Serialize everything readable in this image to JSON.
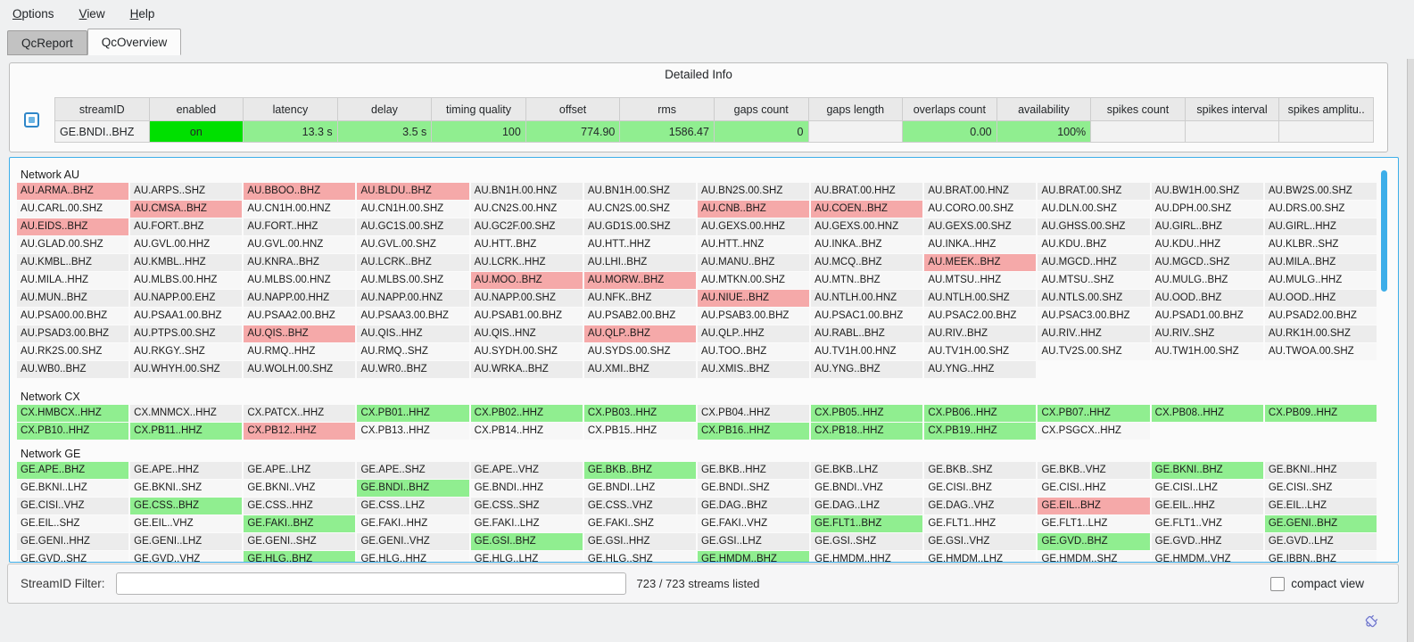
{
  "menu": {
    "items": [
      "Options",
      "View",
      "Help"
    ]
  },
  "tabs": [
    {
      "label": "QcReport",
      "active": false
    },
    {
      "label": "QcOverview",
      "active": true
    }
  ],
  "detailed_info": {
    "title": "Detailed Info",
    "columns": [
      "streamID",
      "enabled",
      "latency",
      "delay",
      "timing quality",
      "offset",
      "rms",
      "gaps count",
      "gaps length",
      "overlaps count",
      "availability",
      "spikes count",
      "spikes interval",
      "spikes amplitu.."
    ],
    "values": [
      "GE.BNDI..BHZ",
      "on",
      "13.3 s",
      "3.5 s",
      "100",
      "774.90",
      "1586.47",
      "0",
      "",
      "0.00",
      "100%",
      "",
      "",
      ""
    ],
    "cell_styles": [
      "plain",
      "on",
      "ok",
      "ok",
      "ok",
      "ok",
      "ok",
      "ok",
      "blank",
      "ok",
      "ok",
      "blank",
      "blank",
      "blank"
    ],
    "aligns": [
      "left",
      "center",
      "right",
      "right",
      "right",
      "right",
      "right",
      "right",
      "right",
      "right",
      "right",
      "right",
      "right",
      "right"
    ]
  },
  "networks": [
    {
      "name": "Network AU",
      "streams": [
        "AU.ARMA..BHZ|a",
        "AU.ARPS..SHZ",
        "AU.BBOO..BHZ|a",
        "AU.BLDU..BHZ|a",
        "AU.BN1H.00.HNZ",
        "AU.BN1H.00.SHZ",
        "AU.BN2S.00.SHZ",
        "AU.BRAT.00.HHZ",
        "AU.BRAT.00.HNZ",
        "AU.BRAT.00.SHZ",
        "AU.BW1H.00.SHZ",
        "AU.BW2S.00.SHZ",
        "AU.CARL.00.SHZ",
        "AU.CMSA..BHZ|a",
        "AU.CN1H.00.HNZ",
        "AU.CN1H.00.SHZ",
        "AU.CN2S.00.HNZ",
        "AU.CN2S.00.SHZ",
        "AU.CNB..BHZ|a",
        "AU.COEN..BHZ|a",
        "AU.CORO.00.SHZ",
        "AU.DLN.00.SHZ",
        "AU.DPH.00.SHZ",
        "AU.DRS.00.SHZ",
        "AU.EIDS..BHZ|a",
        "AU.FORT..BHZ",
        "AU.FORT..HHZ",
        "AU.GC1S.00.SHZ",
        "AU.GC2F.00.SHZ",
        "AU.GD1S.00.SHZ",
        "AU.GEXS.00.HHZ",
        "AU.GEXS.00.HNZ",
        "AU.GEXS.00.SHZ",
        "AU.GHSS.00.SHZ",
        "AU.GIRL..BHZ",
        "AU.GIRL..HHZ",
        "AU.GLAD.00.SHZ",
        "AU.GVL.00.HHZ",
        "AU.GVL.00.HNZ",
        "AU.GVL.00.SHZ",
        "AU.HTT..BHZ",
        "AU.HTT..HHZ",
        "AU.HTT..HNZ",
        "AU.INKA..BHZ",
        "AU.INKA..HHZ",
        "AU.KDU..BHZ",
        "AU.KDU..HHZ",
        "AU.KLBR..SHZ",
        "AU.KMBL..BHZ",
        "AU.KMBL..HHZ",
        "AU.KNRA..BHZ",
        "AU.LCRK..BHZ",
        "AU.LCRK..HHZ",
        "AU.LHI..BHZ",
        "AU.MANU..BHZ",
        "AU.MCQ..BHZ",
        "AU.MEEK..BHZ|a",
        "AU.MGCD..HHZ",
        "AU.MGCD..SHZ",
        "AU.MILA..BHZ",
        "AU.MILA..HHZ",
        "AU.MLBS.00.HHZ",
        "AU.MLBS.00.HNZ",
        "AU.MLBS.00.SHZ",
        "AU.MOO..BHZ|a",
        "AU.MORW..BHZ|a",
        "AU.MTKN.00.SHZ",
        "AU.MTN..BHZ",
        "AU.MTSU..HHZ",
        "AU.MTSU..SHZ",
        "AU.MULG..BHZ",
        "AU.MULG..HHZ",
        "AU.MUN..BHZ",
        "AU.NAPP.00.EHZ",
        "AU.NAPP.00.HHZ",
        "AU.NAPP.00.HNZ",
        "AU.NAPP.00.SHZ",
        "AU.NFK..BHZ",
        "AU.NIUE..BHZ|a",
        "AU.NTLH.00.HNZ",
        "AU.NTLH.00.SHZ",
        "AU.NTLS.00.SHZ",
        "AU.OOD..BHZ",
        "AU.OOD..HHZ",
        "AU.PSA00.00.BHZ",
        "AU.PSAA1.00.BHZ",
        "AU.PSAA2.00.BHZ",
        "AU.PSAA3.00.BHZ",
        "AU.PSAB1.00.BHZ",
        "AU.PSAB2.00.BHZ",
        "AU.PSAB3.00.BHZ",
        "AU.PSAC1.00.BHZ",
        "AU.PSAC2.00.BHZ",
        "AU.PSAC3.00.BHZ",
        "AU.PSAD1.00.BHZ",
        "AU.PSAD2.00.BHZ",
        "AU.PSAD3.00.BHZ",
        "AU.PTPS.00.SHZ",
        "AU.QIS..BHZ|a",
        "AU.QIS..HHZ",
        "AU.QIS..HNZ",
        "AU.QLP..BHZ|a",
        "AU.QLP..HHZ",
        "AU.RABL..BHZ",
        "AU.RIV..BHZ",
        "AU.RIV..HHZ",
        "AU.RIV..SHZ",
        "AU.RK1H.00.SHZ",
        "AU.RK2S.00.SHZ",
        "AU.RKGY..SHZ",
        "AU.RMQ..HHZ",
        "AU.RMQ..SHZ",
        "AU.SYDH.00.SHZ",
        "AU.SYDS.00.SHZ",
        "AU.TOO..BHZ",
        "AU.TV1H.00.HNZ",
        "AU.TV1H.00.SHZ",
        "AU.TV2S.00.SHZ",
        "AU.TW1H.00.SHZ",
        "AU.TWOA.00.SHZ",
        "AU.WB0..BHZ",
        "AU.WHYH.00.SHZ",
        "AU.WOLH.00.SHZ",
        "AU.WR0..BHZ",
        "AU.WRKA..BHZ",
        "AU.XMI..BHZ",
        "AU.XMIS..BHZ",
        "AU.YNG..BHZ",
        "AU.YNG..HHZ"
      ]
    },
    {
      "name": "Network CX",
      "streams": [
        "CX.HMBCX..HHZ|g",
        "CX.MNMCX..HHZ",
        "CX.PATCX..HHZ|d",
        "CX.PB01..HHZ|g",
        "CX.PB02..HHZ|g",
        "CX.PB03..HHZ|g",
        "CX.PB04..HHZ",
        "CX.PB05..HHZ|g",
        "CX.PB06..HHZ|g",
        "CX.PB07..HHZ|g",
        "CX.PB08..HHZ|g",
        "CX.PB09..HHZ|g",
        "CX.PB10..HHZ|g",
        "CX.PB11..HHZ|g",
        "CX.PB12..HHZ|a",
        "CX.PB13..HHZ|d",
        "CX.PB14..HHZ|d",
        "CX.PB15..HHZ",
        "CX.PB16..HHZ|g",
        "CX.PB18..HHZ|g",
        "CX.PB19..HHZ|g",
        "CX.PSGCX..HHZ"
      ]
    },
    {
      "name": "Network GE",
      "streams": [
        "GE.APE..BHZ|g",
        "GE.APE..HHZ",
        "GE.APE..LHZ",
        "GE.APE..SHZ",
        "GE.APE..VHZ",
        "GE.BKB..BHZ|g",
        "GE.BKB..HHZ",
        "GE.BKB..LHZ",
        "GE.BKB..SHZ",
        "GE.BKB..VHZ",
        "GE.BKNI..BHZ|g",
        "GE.BKNI..HHZ",
        "GE.BKNI..LHZ",
        "GE.BKNI..SHZ",
        "GE.BKNI..VHZ",
        "GE.BNDI..BHZ|g",
        "GE.BNDI..HHZ",
        "GE.BNDI..LHZ",
        "GE.BNDI..SHZ",
        "GE.BNDI..VHZ",
        "GE.CISI..BHZ",
        "GE.CISI..HHZ",
        "GE.CISI..LHZ",
        "GE.CISI..SHZ",
        "GE.CISI..VHZ",
        "GE.CSS..BHZ|g",
        "GE.CSS..HHZ",
        "GE.CSS..LHZ",
        "GE.CSS..SHZ",
        "GE.CSS..VHZ",
        "GE.DAG..BHZ",
        "GE.DAG..LHZ",
        "GE.DAG..VHZ",
        "GE.EIL..BHZ|a",
        "GE.EIL..HHZ",
        "GE.EIL..LHZ",
        "GE.EIL..SHZ",
        "GE.EIL..VHZ",
        "GE.FAKI..BHZ|g",
        "GE.FAKI..HHZ",
        "GE.FAKI..LHZ",
        "GE.FAKI..SHZ",
        "GE.FAKI..VHZ",
        "GE.FLT1..BHZ|g",
        "GE.FLT1..HHZ",
        "GE.FLT1..LHZ",
        "GE.FLT1..VHZ",
        "GE.GENI..BHZ|g",
        "GE.GENI..HHZ",
        "GE.GENI..LHZ",
        "GE.GENI..SHZ",
        "GE.GENI..VHZ",
        "GE.GSI..BHZ|g",
        "GE.GSI..HHZ",
        "GE.GSI..LHZ",
        "GE.GSI..SHZ",
        "GE.GSI..VHZ",
        "GE.GVD..BHZ|g",
        "GE.GVD..HHZ",
        "GE.GVD..LHZ",
        "GE.GVD..SHZ",
        "GE.GVD..VHZ",
        "GE.HLG..BHZ|g",
        "GE.HLG..HHZ",
        "GE.HLG..LHZ",
        "GE.HLG..SHZ",
        "GE.HMDM..BHZ|g",
        "GE.HMDM..HHZ",
        "GE.HMDM..LHZ",
        "GE.HMDM..SHZ",
        "GE.HMDM..VHZ",
        "GE.IBBN..BHZ"
      ]
    }
  ],
  "footer": {
    "filter_label": "StreamID Filter:",
    "filter_value": "",
    "status_text": "723 / 723 streams listed",
    "compact_view_label": "compact view"
  },
  "colors": {
    "status_ok": "#90ee90",
    "status_alert": "#f5a9a9",
    "enabled_on": "#00e000",
    "focus_border": "#3daee9",
    "scrollbar": "#3daee9",
    "row_odd": "#ececec",
    "row_even": "#f7f7f7"
  },
  "icons": {
    "detail_checkbox": "checked-checkbox-icon",
    "bottom_right": "connection-plug-icon"
  }
}
